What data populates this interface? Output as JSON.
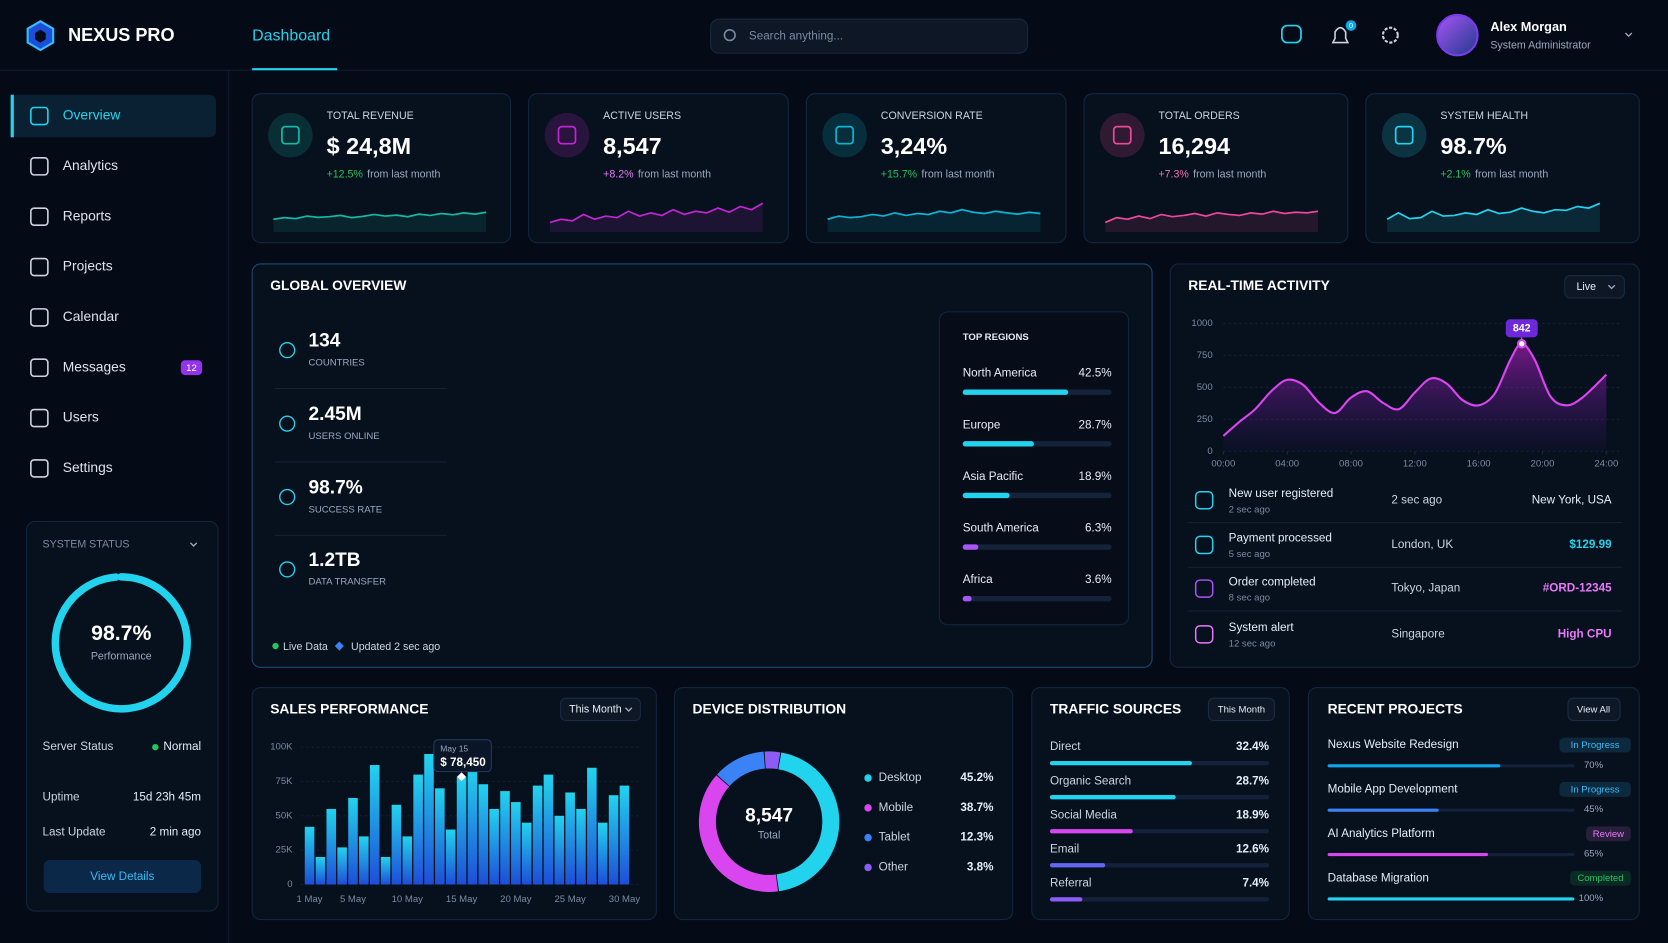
{
  "header": {
    "brand": "NEXUS PRO",
    "tab": "Dashboard",
    "search_placeholder": "Search anything...",
    "notification_count": "0",
    "user": {
      "name": "Alex Morgan",
      "role": "System Administrator"
    }
  },
  "sidebar": {
    "items": [
      {
        "label": "Overview",
        "active": true
      },
      {
        "label": "Analytics"
      },
      {
        "label": "Reports"
      },
      {
        "label": "Projects"
      },
      {
        "label": "Calendar"
      },
      {
        "label": "Messages",
        "badge": "12"
      },
      {
        "label": "Users"
      },
      {
        "label": "Settings"
      }
    ]
  },
  "system_status": {
    "title": "SYSTEM STATUS",
    "gauge": {
      "value": 98.7,
      "label": "98.7%",
      "caption": "Performance",
      "range": [
        0,
        100
      ],
      "color": "#22d3ee"
    },
    "rows": [
      {
        "label": "Server Status",
        "value": "Normal"
      },
      {
        "label": "Uptime",
        "value": "15d 23h 45m"
      },
      {
        "label": "Last Update",
        "value": "2 min ago"
      }
    ],
    "button": "View Details"
  },
  "kpis": [
    {
      "label": "TOTAL REVENUE",
      "value": "$ 24,8M",
      "change": "+12.5%",
      "note": "from last month",
      "change_color": "#22c55e",
      "color": "#14b8a6",
      "ylim": [
        0,
        10
      ],
      "spark": [
        3,
        3.5,
        3.2,
        4,
        3.6,
        3.8,
        4.2,
        3.5,
        3.9,
        4.5,
        4,
        4.3,
        3.8,
        4.6,
        4.2,
        4.8,
        4.4,
        5,
        4.6,
        5.2
      ]
    },
    {
      "label": "ACTIVE USERS",
      "value": "8,547",
      "change": "+8.2%",
      "note": "from last month",
      "change_color": "#e879f9",
      "color": "#c026d3",
      "ylim": [
        0,
        10
      ],
      "spark": [
        2,
        3,
        2.5,
        4.5,
        3,
        4,
        3.5,
        5.5,
        4,
        5,
        4.2,
        6,
        4.5,
        5.5,
        5,
        6.5,
        5.2,
        7,
        6,
        8
      ]
    },
    {
      "label": "CONVERSION RATE",
      "value": "3,24%",
      "change": "+15.7%",
      "note": "from last month",
      "change_color": "#22c55e",
      "color": "#06b6d4",
      "ylim": [
        0,
        10
      ],
      "spark": [
        3,
        4,
        3.5,
        3.8,
        4.5,
        4,
        5,
        4.2,
        4.8,
        4.5,
        5.5,
        5,
        6,
        5.2,
        4.8,
        5.5,
        5,
        4.6,
        5.2,
        4.8
      ]
    },
    {
      "label": "TOTAL ORDERS",
      "value": "16,294",
      "change": "+7.3%",
      "note": "from last month",
      "change_color": "#f472b6",
      "color": "#ec4899",
      "ylim": [
        0,
        10
      ],
      "spark": [
        2,
        3.5,
        3,
        4,
        3.2,
        4.5,
        3.8,
        4.2,
        4.8,
        4,
        5,
        4.5,
        4.2,
        5,
        4.6,
        5.5,
        4.8,
        5.2,
        5,
        5.5
      ]
    },
    {
      "label": "SYSTEM HEALTH",
      "value": "98.7%",
      "change": "+2.1%",
      "note": "from last month",
      "change_color": "#22c55e",
      "color": "#22d3ee",
      "ylim": [
        0,
        10
      ],
      "spark": [
        3,
        5,
        3.2,
        3.5,
        5.5,
        4,
        4.2,
        5,
        4.5,
        6,
        4.8,
        5.2,
        6.5,
        5.5,
        5,
        6,
        5.8,
        7,
        6.5,
        8
      ]
    }
  ],
  "global_overview": {
    "title": "GLOBAL OVERVIEW",
    "stats": [
      {
        "value": "134",
        "label": "COUNTRIES"
      },
      {
        "value": "2.45M",
        "label": "USERS ONLINE"
      },
      {
        "value": "98.7%",
        "label": "SUCCESS RATE"
      },
      {
        "value": "1.2TB",
        "label": "DATA TRANSFER"
      }
    ],
    "footer": {
      "live": "Live Data",
      "updated": "Updated 2 sec ago"
    },
    "top_regions": {
      "title": "TOP REGIONS",
      "xlim": [
        0,
        60
      ],
      "items": [
        {
          "name": "North America",
          "value": 42.5,
          "label": "42.5%",
          "color": "#22d3ee"
        },
        {
          "name": "Europe",
          "value": 28.7,
          "label": "28.7%",
          "color": "#22d3ee"
        },
        {
          "name": "Asia Pacific",
          "value": 18.9,
          "label": "18.9%",
          "color": "#22d3ee"
        },
        {
          "name": "South America",
          "value": 6.3,
          "label": "6.3%",
          "color": "#a855f7"
        },
        {
          "name": "Africa",
          "value": 3.6,
          "label": "3.6%",
          "color": "#a855f7"
        }
      ]
    }
  },
  "realtime": {
    "title": "REAL-TIME ACTIVITY",
    "filter": "Live",
    "chart": {
      "type": "area",
      "ylim": [
        0,
        1000
      ],
      "yticks": [
        0,
        250,
        500,
        750,
        1000
      ],
      "xlim": [
        0,
        24
      ],
      "xticks": [
        {
          "value": 0,
          "label": "00:00"
        },
        {
          "value": 4,
          "label": "04:00"
        },
        {
          "value": 8,
          "label": "08:00"
        },
        {
          "value": 12,
          "label": "12:00"
        },
        {
          "value": 16,
          "label": "16:00"
        },
        {
          "value": 20,
          "label": "20:00"
        },
        {
          "value": 24,
          "label": "24:00"
        }
      ],
      "series": [
        {
          "color": "#d946ef",
          "x": [
            0,
            1,
            2,
            3,
            4,
            5,
            6,
            7,
            8,
            9,
            10,
            11,
            12,
            13,
            14,
            15,
            16,
            17,
            18,
            18.7,
            19.5,
            20.5,
            21.5,
            22.5,
            24
          ],
          "values": [
            120,
            230,
            330,
            470,
            560,
            520,
            380,
            300,
            420,
            470,
            380,
            330,
            460,
            570,
            530,
            400,
            360,
            450,
            720,
            842,
            720,
            430,
            360,
            420,
            600
          ]
        }
      ],
      "annotation": {
        "x": 18.7,
        "value": 842
      }
    },
    "activity": [
      {
        "title": "New user registered",
        "time": "2 sec ago",
        "meta": "2 sec ago",
        "right": "New York, USA",
        "right_color": "#e5edf7"
      },
      {
        "title": "Payment processed",
        "time": "5 sec ago",
        "meta": "London, UK",
        "right": "$129.99",
        "right_color": "#22d3ee"
      },
      {
        "title": "Order completed",
        "time": "8 sec ago",
        "meta": "Tokyo, Japan",
        "right": "#ORD-12345",
        "right_color": "#e879f9"
      },
      {
        "title": "System alert",
        "time": "12 sec ago",
        "meta": "Singapore",
        "right": "High CPU",
        "right_color": "#e879f9"
      }
    ]
  },
  "sales": {
    "title": "SALES PERFORMANCE",
    "filter": "This Month",
    "chart": {
      "type": "bar",
      "color": "#0ea5e9",
      "ylim": [
        0,
        100000
      ],
      "yticks": [
        {
          "value": 0,
          "label": "0"
        },
        {
          "value": 25000,
          "label": "25K"
        },
        {
          "value": 50000,
          "label": "50K"
        },
        {
          "value": 75000,
          "label": "75K"
        },
        {
          "value": 100000,
          "label": "100K"
        }
      ],
      "categories": [
        "1 May",
        null,
        null,
        null,
        "5 May",
        null,
        null,
        null,
        null,
        "10 May",
        null,
        null,
        null,
        null,
        "15 May",
        null,
        null,
        null,
        null,
        "20 May",
        null,
        null,
        null,
        null,
        "25 May",
        null,
        null,
        null,
        null,
        "30 May"
      ],
      "values": [
        42000,
        20000,
        55000,
        27000,
        63000,
        35000,
        87000,
        20000,
        58000,
        35000,
        80000,
        95000,
        70000,
        40000,
        78450,
        86000,
        73000,
        55000,
        68000,
        60000,
        45000,
        72000,
        80000,
        50000,
        67000,
        55000,
        85000,
        45000,
        65000,
        72000
      ],
      "tooltip": {
        "date": "May 15",
        "value": 78450,
        "label": "$ 78,450"
      }
    }
  },
  "device": {
    "title": "DEVICE DISTRIBUTION",
    "chart": {
      "type": "donut",
      "total": "8,547",
      "total_label": "Total",
      "items": [
        {
          "name": "Desktop",
          "value": 45.2,
          "label": "45.2%",
          "color": "#22d3ee"
        },
        {
          "name": "Mobile",
          "value": 38.7,
          "label": "38.7%",
          "color": "#d946ef"
        },
        {
          "name": "Tablet",
          "value": 12.3,
          "label": "12.3%",
          "color": "#3b82f6"
        },
        {
          "name": "Other",
          "value": 3.8,
          "label": "3.8%",
          "color": "#8b5cf6"
        }
      ]
    }
  },
  "traffic": {
    "title": "TRAFFIC SOURCES",
    "filter": "This Month",
    "xlim": [
      0,
      50
    ],
    "items": [
      {
        "name": "Direct",
        "value": 32.4,
        "label": "32.4%",
        "color": "#22d3ee"
      },
      {
        "name": "Organic Search",
        "value": 28.7,
        "label": "28.7%",
        "color": "#22d3ee"
      },
      {
        "name": "Social Media",
        "value": 18.9,
        "label": "18.9%",
        "color": "#d946ef"
      },
      {
        "name": "Email",
        "value": 12.6,
        "label": "12.6%",
        "color": "#6366f1"
      },
      {
        "name": "Referral",
        "value": 7.4,
        "label": "7.4%",
        "color": "#8b5cf6"
      }
    ]
  },
  "projects": {
    "title": "RECENT PROJECTS",
    "action": "View All",
    "items": [
      {
        "name": "Nexus Website Redesign",
        "status": "In Progress",
        "status_color": "#38bdf8",
        "progress": 70,
        "progress_label": "70%",
        "color": "#0ea5e9"
      },
      {
        "name": "Mobile App Development",
        "status": "In Progress",
        "status_color": "#38bdf8",
        "progress": 45,
        "progress_label": "45%",
        "color": "#3b82f6"
      },
      {
        "name": "AI Analytics Platform",
        "status": "Review",
        "status_color": "#e879f9",
        "progress": 65,
        "progress_label": "65%",
        "color": "#d946ef"
      },
      {
        "name": "Database Migration",
        "status": "Completed",
        "status_color": "#22c55e",
        "progress": 100,
        "progress_label": "100%",
        "color": "#22d3ee"
      }
    ]
  }
}
